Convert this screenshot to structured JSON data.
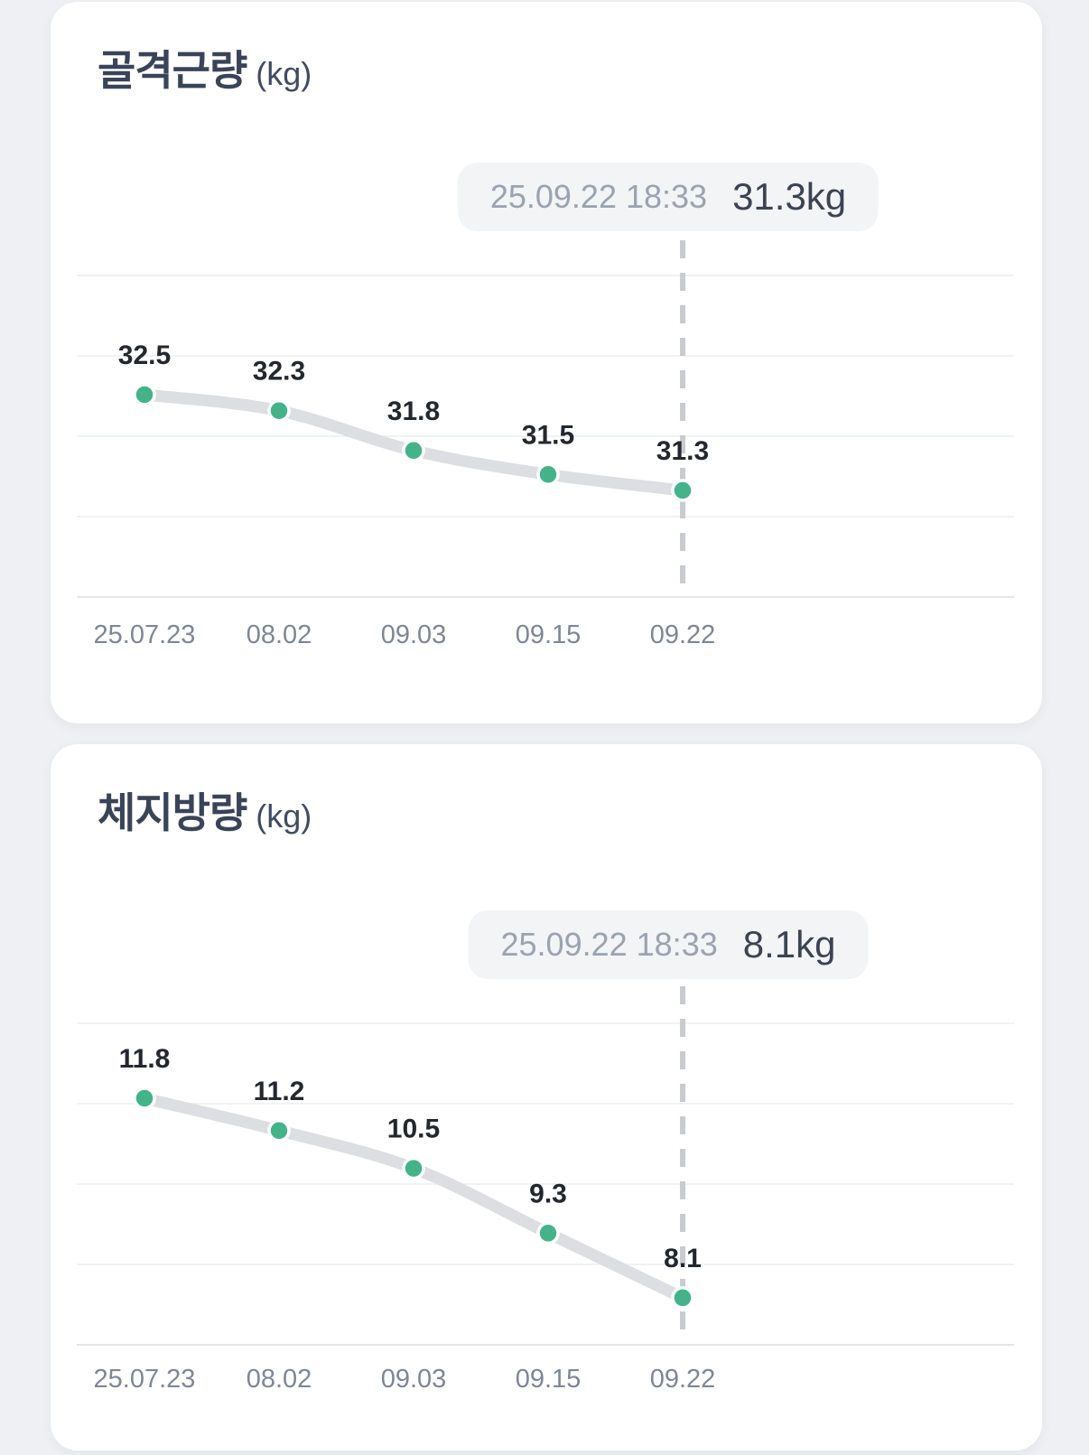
{
  "app": {
    "view": "body-composition-trends"
  },
  "colors": {
    "page_bg": "#eef0f3",
    "card_bg": "#ffffff",
    "title": "#3a4458",
    "gridline": "#f1f2f4",
    "axis_line": "#e3e5e9",
    "dashed_marker": "#c8cbd0",
    "line": "#dcdee2",
    "point": "#44b389",
    "point_stroke": "#ffffff",
    "point_label": "#23272e",
    "x_label": "#7e8795",
    "tooltip_bg": "#f2f4f6",
    "tooltip_date": "#9aa3b0",
    "tooltip_value": "#3b4353"
  },
  "chart_data": [
    {
      "type": "line",
      "title": "골격근량",
      "unit_label": "(kg)",
      "tooltip_datetime": "25.09.22 18:33",
      "tooltip_value": "31.3kg",
      "x": [
        "25.07.23",
        "08.02",
        "09.03",
        "09.15",
        "09.22"
      ],
      "values": [
        32.5,
        32.3,
        31.8,
        31.5,
        31.3
      ],
      "point_labels": [
        "32.5",
        "32.3",
        "31.8",
        "31.5",
        "31.3"
      ],
      "selected_index": 4,
      "selected_value": 31.3,
      "grid": "horizontal-only",
      "y_axis_labels": false,
      "legend": false
    },
    {
      "type": "line",
      "title": "체지방량",
      "unit_label": "(kg)",
      "tooltip_datetime": "25.09.22 18:33",
      "tooltip_value": "8.1kg",
      "x": [
        "25.07.23",
        "08.02",
        "09.03",
        "09.15",
        "09.22"
      ],
      "values": [
        11.8,
        11.2,
        10.5,
        9.3,
        8.1
      ],
      "point_labels": [
        "11.8",
        "11.2",
        "10.5",
        "9.3",
        "8.1"
      ],
      "selected_index": 4,
      "selected_value": 8.1,
      "grid": "horizontal-only",
      "y_axis_labels": false,
      "legend": false
    }
  ]
}
